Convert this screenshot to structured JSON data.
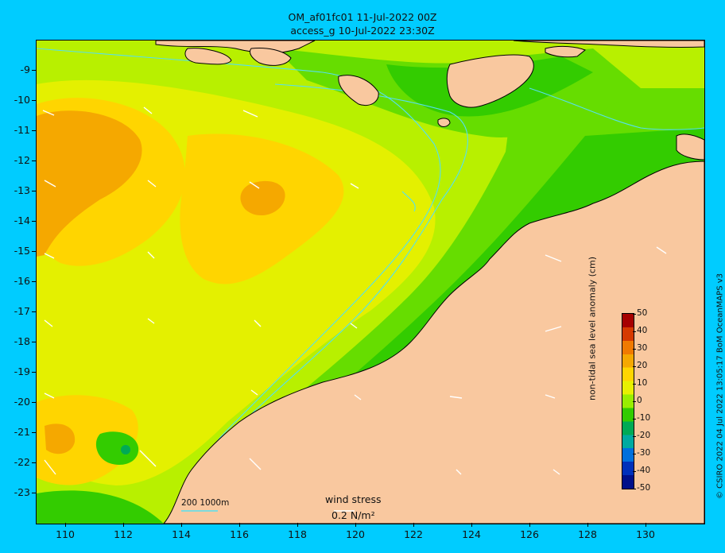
{
  "title": {
    "line1": "OM_af01fc01 11-Jul-2022 00Z",
    "line2": "access_g 10-Jul-2022 23:30Z"
  },
  "axes": {
    "lat_labels": [
      "-9",
      "-10",
      "-11",
      "-12",
      "-13",
      "-14",
      "-15",
      "-16",
      "-17",
      "-18",
      "-19",
      "-20",
      "-21",
      "-22",
      "-23"
    ],
    "lon_labels": [
      "110",
      "112",
      "114",
      "116",
      "118",
      "120",
      "122",
      "124",
      "126",
      "128",
      "130"
    ]
  },
  "colorbar": {
    "title": "non-tidal sea level anomaly (cm)",
    "labels": [
      "50",
      "40",
      "30",
      "20",
      "10",
      "0",
      "-10",
      "-20",
      "-30",
      "-40",
      "-50"
    ],
    "colors": [
      "#a60000",
      "#d63a00",
      "#f07a00",
      "#f5a800",
      "#ffd500",
      "#e8f000",
      "#99ee00",
      "#33cc00",
      "#00aa55",
      "#00aaa0",
      "#0070dd",
      "#0030bb",
      "#00108a"
    ]
  },
  "legend": {
    "wind_title": "wind stress",
    "wind_value": "0.2 N/m²",
    "scale_label": "200  1000m"
  },
  "copyright": "© CSIRO 2022   04 Jul 2022 13:05:17 BoM OceanMAPS v3",
  "colors": {
    "land": "#f9c89f",
    "background": "#00ccff",
    "contour": "#55e0f0"
  }
}
